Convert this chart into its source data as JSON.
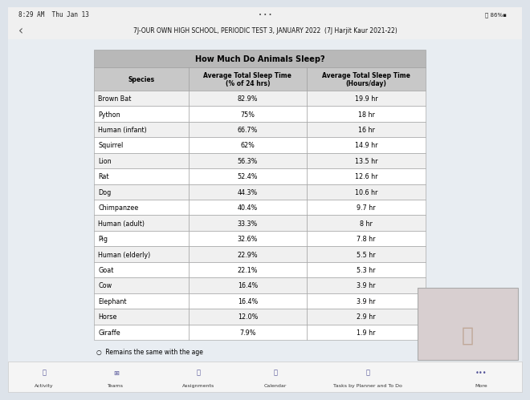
{
  "status_bar": "8:29 AM  Thu Jan 13",
  "title_top": "7J-OUR OWN HIGH SCHOOL, PERIODIC TEST 3, JANUARY 2022  (7J Harjit Kaur 2021-22)",
  "table_title": "How Much Do Animals Sleep?",
  "col_headers": [
    "Species",
    "Average Total Sleep Time\n(% of 24 hrs)",
    "Average Total Sleep Time\n(Hours/day)"
  ],
  "rows": [
    [
      "Brown Bat",
      "82.9%",
      "19.9 hr"
    ],
    [
      "Python",
      "75%",
      "18 hr"
    ],
    [
      "Human (infant)",
      "66.7%",
      "16 hr"
    ],
    [
      "Squirrel",
      "62%",
      "14.9 hr"
    ],
    [
      "Lion",
      "56.3%",
      "13.5 hr"
    ],
    [
      "Rat",
      "52.4%",
      "12.6 hr"
    ],
    [
      "Dog",
      "44.3%",
      "10.6 hr"
    ],
    [
      "Chimpanzee",
      "40.4%",
      "9.7 hr"
    ],
    [
      "Human (adult)",
      "33.3%",
      "8 hr"
    ],
    [
      "Pig",
      "32.6%",
      "7.8 hr"
    ],
    [
      "Human (elderly)",
      "22.9%",
      "5.5 hr"
    ],
    [
      "Goat",
      "22.1%",
      "5.3 hr"
    ],
    [
      "Cow",
      "16.4%",
      "3.9 hr"
    ],
    [
      "Elephant",
      "16.4%",
      "3.9 hr"
    ],
    [
      "Horse",
      "12.0%",
      "2.9 hr"
    ],
    [
      "Giraffe",
      "7.9%",
      "1.9 hr"
    ]
  ],
  "header_bg": "#c8c8c8",
  "title_row_bg": "#b8b8b8",
  "odd_row_bg": "#f0f0f0",
  "even_row_bg": "#ffffff",
  "border_color": "#999999",
  "text_color": "#000000",
  "title_color": "#111111",
  "footnote": "Remains the same with the age",
  "bg_color": "#dde3ea",
  "status_bg": "#f0f0f0",
  "nav_bg": "#f5f5f5",
  "table_bg": "#e8edf2",
  "nav_items": [
    "Activity",
    "Teams",
    "Assignments",
    "Calendar",
    "Tasks by Planner and To Do",
    "More"
  ],
  "video_bg": "#d8cfd0"
}
